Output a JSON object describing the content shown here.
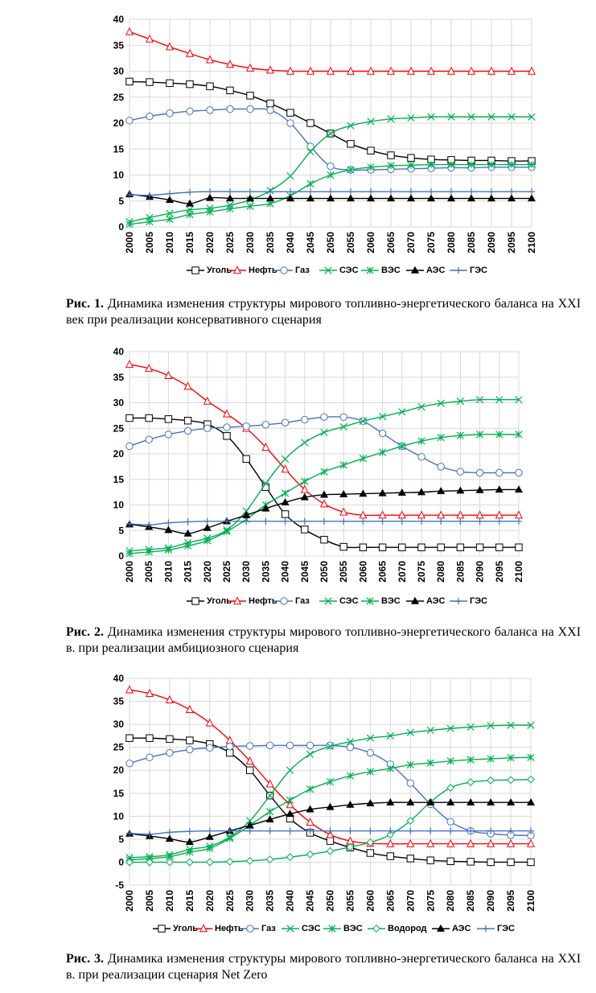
{
  "figures": [
    {
      "caption_lead": "Рис. 1.",
      "caption_text": "Динамика изменения структуры мирового топливно-энергетического баланса на XXI век при реализации консервативного сценария"
    },
    {
      "caption_lead": "Рис. 2.",
      "caption_text": "Динамика изменения структуры мирового топливно-энергетического баланса на XXI в. при реализации амбициозного сценария"
    },
    {
      "caption_lead": "Рис. 3.",
      "caption_text": "Динамика изменения структуры мирового топливно-энергетического баланса на XXI в. при реализации сценария Net Zero"
    }
  ],
  "chart_data": [
    {
      "type": "line",
      "title": "",
      "xlabel": "",
      "ylabel": "",
      "ylim": [
        0,
        40
      ],
      "yticks": [
        0,
        5,
        10,
        15,
        20,
        25,
        30,
        35,
        40
      ],
      "grid": true,
      "legend_position": "bottom",
      "x": [
        "2000",
        "2005",
        "2010",
        "2015",
        "2020",
        "2025",
        "2030",
        "2035",
        "2040",
        "2045",
        "2050",
        "2055",
        "2060",
        "2065",
        "2070",
        "2075",
        "2080",
        "2085",
        "2090",
        "2095",
        "2100"
      ],
      "series": [
        {
          "name": "Уголь",
          "color": "#000000",
          "marker": "square",
          "values": [
            28,
            27.9,
            27.7,
            27.5,
            27.1,
            26.3,
            25.3,
            23.8,
            22,
            20,
            18,
            16,
            14.7,
            13.8,
            13.3,
            13,
            12.9,
            12.8,
            12.8,
            12.7,
            12.7
          ]
        },
        {
          "name": "Нефть",
          "color": "#ff0000",
          "marker": "triangle",
          "values": [
            37.6,
            36.2,
            34.7,
            33.4,
            32.2,
            31.3,
            30.6,
            30.2,
            30,
            30,
            30,
            30,
            30,
            30,
            30,
            30,
            30,
            30,
            30,
            30,
            30
          ]
        },
        {
          "name": "Газ",
          "color": "#4472c4",
          "marker": "circle",
          "values": [
            20.5,
            21.3,
            21.9,
            22.3,
            22.5,
            22.7,
            22.7,
            22.5,
            20,
            15.5,
            11.7,
            11,
            11,
            11.1,
            11.2,
            11.3,
            11.4,
            11.4,
            11.5,
            11.5,
            11.5
          ]
        },
        {
          "name": "СЭС",
          "color": "#00b050",
          "marker": "x",
          "values": [
            1,
            1.8,
            2.6,
            3.3,
            3.6,
            4.2,
            5.2,
            7,
            9.8,
            14.5,
            18,
            19.5,
            20.3,
            20.8,
            21,
            21.2,
            21.2,
            21.2,
            21.2,
            21.2,
            21.2
          ]
        },
        {
          "name": "ВЭС",
          "color": "#00b050",
          "marker": "star",
          "values": [
            0.5,
            1,
            1.5,
            2.4,
            2.9,
            3.5,
            4,
            4.5,
            6,
            8.3,
            10,
            11,
            11.5,
            11.8,
            11.9,
            12,
            12,
            12,
            12,
            12,
            12
          ]
        },
        {
          "name": "АЭС",
          "color": "#000000",
          "marker": "filled-triangle",
          "values": [
            6.3,
            5.8,
            5.2,
            4.5,
            5.6,
            5.5,
            5.5,
            5.5,
            5.5,
            5.5,
            5.5,
            5.5,
            5.5,
            5.5,
            5.5,
            5.5,
            5.5,
            5.5,
            5.5,
            5.5,
            5.5
          ]
        },
        {
          "name": "ГЭС",
          "color": "#4472c4",
          "marker": "plus",
          "values": [
            6.2,
            6.1,
            6.4,
            6.7,
            6.8,
            6.8,
            6.8,
            6.8,
            6.8,
            6.8,
            6.8,
            6.8,
            6.8,
            6.8,
            6.8,
            6.8,
            6.8,
            6.8,
            6.8,
            6.8,
            6.8
          ]
        }
      ]
    },
    {
      "type": "line",
      "title": "",
      "xlabel": "",
      "ylabel": "",
      "ylim": [
        0,
        40
      ],
      "yticks": [
        0,
        5,
        10,
        15,
        20,
        25,
        30,
        35,
        40
      ],
      "grid": true,
      "legend_position": "bottom",
      "x": [
        "2000",
        "2005",
        "2010",
        "2015",
        "2020",
        "2025",
        "2030",
        "2035",
        "2040",
        "2045",
        "2050",
        "2055",
        "2060",
        "2065",
        "2070",
        "2075",
        "2080",
        "2085",
        "2090",
        "2095",
        "2100"
      ],
      "series": [
        {
          "name": "Уголь",
          "color": "#000000",
          "marker": "square",
          "values": [
            27,
            27,
            26.8,
            26.5,
            25.8,
            23.5,
            19,
            13.5,
            8.2,
            5.2,
            3.2,
            1.8,
            1.7,
            1.7,
            1.7,
            1.7,
            1.7,
            1.7,
            1.7,
            1.7,
            1.7
          ]
        },
        {
          "name": "Нефть",
          "color": "#ff0000",
          "marker": "triangle",
          "values": [
            37.5,
            36.7,
            35.3,
            33.2,
            30.3,
            27.8,
            25,
            21.3,
            17,
            13,
            10.2,
            8.6,
            8,
            8,
            8,
            8,
            8,
            8,
            8,
            8,
            8
          ]
        },
        {
          "name": "Газ",
          "color": "#4472c4",
          "marker": "circle",
          "values": [
            21.5,
            22.8,
            23.8,
            24.5,
            25,
            25.2,
            25.4,
            25.7,
            26.1,
            26.7,
            27.2,
            27.2,
            26.4,
            24,
            21.5,
            19.4,
            17.5,
            16.5,
            16.3,
            16.3,
            16.3
          ]
        },
        {
          "name": "СЭС",
          "color": "#00b050",
          "marker": "x",
          "values": [
            1,
            1.3,
            1.6,
            2.6,
            3.5,
            5.1,
            8.8,
            14.2,
            19,
            22.2,
            24.2,
            25.3,
            26.4,
            27.3,
            28.2,
            29.2,
            29.9,
            30.3,
            30.6,
            30.6,
            30.6
          ]
        },
        {
          "name": "ВЭС",
          "color": "#00b050",
          "marker": "star",
          "values": [
            0.5,
            0.8,
            1.2,
            2,
            3,
            4.8,
            7.2,
            10,
            12.3,
            14.6,
            16.5,
            17.8,
            19.1,
            20.3,
            21.5,
            22.5,
            23.2,
            23.6,
            23.8,
            23.8,
            23.8
          ]
        },
        {
          "name": "АЭС",
          "color": "#000000",
          "marker": "filled-triangle",
          "values": [
            6.2,
            5.7,
            5.1,
            4.4,
            5.5,
            6.8,
            8,
            9.3,
            10.5,
            11.5,
            12,
            12.1,
            12.2,
            12.3,
            12.4,
            12.5,
            12.7,
            12.8,
            12.9,
            13,
            13
          ]
        },
        {
          "name": "ГЭС",
          "color": "#4472c4",
          "marker": "plus",
          "values": [
            6.3,
            6.1,
            6.5,
            6.7,
            6.8,
            6.8,
            6.8,
            6.8,
            6.8,
            6.8,
            6.8,
            6.8,
            6.8,
            6.8,
            6.8,
            6.8,
            6.8,
            6.8,
            6.8,
            6.8,
            6.8
          ]
        }
      ]
    },
    {
      "type": "line",
      "title": "",
      "xlabel": "",
      "ylabel": "",
      "ylim": [
        -5,
        40
      ],
      "yticks": [
        -5,
        0,
        5,
        10,
        15,
        20,
        25,
        30,
        35,
        40
      ],
      "grid": true,
      "legend_position": "bottom",
      "x": [
        "2000",
        "2005",
        "2010",
        "2015",
        "2020",
        "2025",
        "2030",
        "2035",
        "2040",
        "2045",
        "2050",
        "2055",
        "2060",
        "2065",
        "2070",
        "2075",
        "2080",
        "2085",
        "2090",
        "2095",
        "2100"
      ],
      "series": [
        {
          "name": "Уголь",
          "color": "#000000",
          "marker": "square",
          "values": [
            27,
            27,
            26.8,
            26.5,
            25.7,
            23.8,
            20,
            14.5,
            9.5,
            6.4,
            4.6,
            3.2,
            2,
            1.3,
            0.8,
            0.4,
            0.2,
            0.1,
            0,
            0,
            0
          ]
        },
        {
          "name": "Нефть",
          "color": "#ff0000",
          "marker": "triangle",
          "values": [
            37.5,
            36.7,
            35.3,
            33.2,
            30.3,
            26.5,
            22,
            17,
            12.5,
            8.7,
            6,
            4.6,
            4.1,
            4,
            4,
            4,
            4,
            4,
            4,
            4,
            4
          ]
        },
        {
          "name": "Газ",
          "color": "#4472c4",
          "marker": "circle",
          "values": [
            21.5,
            22.8,
            23.8,
            24.5,
            24.9,
            25.2,
            25.3,
            25.4,
            25.4,
            25.4,
            25.4,
            25,
            23.8,
            21.3,
            17.2,
            12.6,
            8.8,
            6.8,
            6.2,
            5.9,
            5.8
          ]
        },
        {
          "name": "СЭС",
          "color": "#00b050",
          "marker": "x",
          "values": [
            1,
            1.2,
            1.6,
            2.8,
            3.5,
            5.5,
            9,
            14.5,
            20,
            23.5,
            25.2,
            26.2,
            27,
            27.5,
            28.2,
            28.7,
            29.1,
            29.4,
            29.7,
            29.8,
            29.8
          ]
        },
        {
          "name": "ВЭС",
          "color": "#00b050",
          "marker": "star",
          "values": [
            0.5,
            0.8,
            1.2,
            2.2,
            3,
            5.2,
            8,
            11,
            13.5,
            15.9,
            17.5,
            18.8,
            19.7,
            20.4,
            21.2,
            21.6,
            22,
            22.3,
            22.5,
            22.7,
            22.8
          ]
        },
        {
          "name": "Водород",
          "color": "#00b050",
          "marker": "diamond",
          "values": [
            0,
            0,
            0,
            0,
            0,
            0.1,
            0.3,
            0.6,
            1.1,
            1.7,
            2.4,
            3.3,
            4.3,
            6,
            9,
            13.1,
            16.2,
            17.4,
            17.8,
            17.9,
            18
          ]
        },
        {
          "name": "АЭС",
          "color": "#000000",
          "marker": "filled-triangle",
          "values": [
            6.2,
            5.7,
            5.1,
            4.4,
            5.5,
            6.8,
            8,
            9.3,
            10.5,
            11.5,
            12,
            12.5,
            12.8,
            13,
            13,
            13,
            13,
            13,
            13,
            13,
            13
          ]
        },
        {
          "name": "ГЭС",
          "color": "#4472c4",
          "marker": "plus",
          "values": [
            6.3,
            6.1,
            6.5,
            6.7,
            6.8,
            6.8,
            6.8,
            6.8,
            6.8,
            6.8,
            6.8,
            6.8,
            6.8,
            6.8,
            6.8,
            6.8,
            6.8,
            6.8,
            6.8,
            6.8,
            6.8
          ]
        }
      ]
    }
  ]
}
